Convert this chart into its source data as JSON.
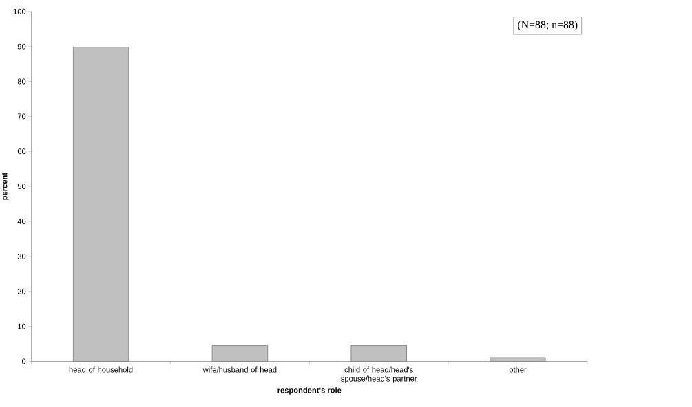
{
  "chart_data": {
    "type": "bar",
    "xlabel": "respondent's role",
    "ylabel": "percent",
    "categories": [
      "head of household",
      "wife/husband of head",
      "child of head/head's spouse/head's partner",
      "other"
    ],
    "values": [
      89.8,
      4.5,
      4.5,
      1.1
    ],
    "color": "#c0c0c0",
    "ylim": [
      0,
      100
    ],
    "yticks": [
      0,
      10,
      20,
      30,
      40,
      50,
      60,
      70,
      80,
      90,
      100
    ],
    "annotations": [
      "(N=88; n=88)"
    ]
  }
}
